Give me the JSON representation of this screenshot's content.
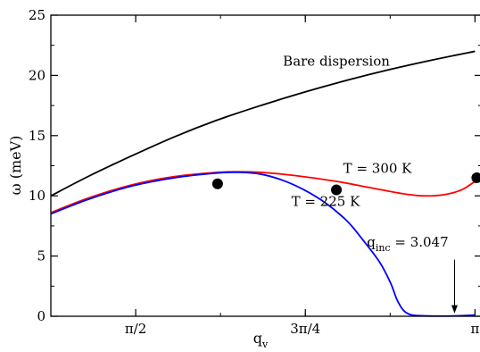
{
  "chart_data": {
    "type": "line",
    "xlabel": "q",
    "xlabel_sub": "v",
    "ylabel": "ω (meV)",
    "xlim": [
      1.1781,
      3.1731
    ],
    "ylim": [
      0,
      25
    ],
    "grid": false,
    "x_ticks": [
      {
        "value": 1.5708,
        "label": "π/2"
      },
      {
        "value": 2.3562,
        "label": "3π/4"
      },
      {
        "value": 3.1416,
        "label": "π"
      }
    ],
    "y_ticks": [
      {
        "value": 0,
        "label": "0"
      },
      {
        "value": 5,
        "label": "5"
      },
      {
        "value": 10,
        "label": "10"
      },
      {
        "value": 15,
        "label": "15"
      },
      {
        "value": 20,
        "label": "20"
      },
      {
        "value": 25,
        "label": "25"
      }
    ],
    "series": [
      {
        "name": "Bare dispersion",
        "color": "#000000",
        "x": [
          1.1781,
          1.35,
          1.55,
          1.75,
          1.95,
          2.15,
          2.35,
          2.55,
          2.75,
          2.95,
          3.1416
        ],
        "y": [
          10.0,
          11.6,
          13.3,
          14.9,
          16.3,
          17.5,
          18.6,
          19.6,
          20.5,
          21.3,
          22.0
        ]
      },
      {
        "name": "T = 300 K",
        "color": "#ff0000",
        "x": [
          1.1781,
          1.35,
          1.55,
          1.75,
          1.95,
          2.05,
          2.15,
          2.3,
          2.5,
          2.65,
          2.8,
          2.9,
          3.0,
          3.08,
          3.1416
        ],
        "y": [
          8.6,
          9.8,
          10.9,
          11.6,
          11.95,
          12.0,
          11.95,
          11.7,
          11.2,
          10.7,
          10.2,
          10.0,
          10.1,
          10.5,
          11.2
        ]
      },
      {
        "name": "T = 225 K",
        "color": "#0000ff",
        "x": [
          1.1781,
          1.35,
          1.55,
          1.75,
          1.95,
          2.05,
          2.15,
          2.25,
          2.35,
          2.45,
          2.55,
          2.62,
          2.7,
          2.75,
          2.78,
          2.81,
          2.84,
          2.88,
          2.95,
          3.047,
          3.1416
        ],
        "y": [
          8.5,
          9.7,
          10.8,
          11.5,
          11.9,
          11.95,
          11.8,
          11.3,
          10.5,
          9.4,
          7.9,
          6.4,
          4.5,
          2.8,
          1.4,
          0.5,
          0.15,
          0.05,
          0.02,
          0.03,
          0.1
        ]
      }
    ],
    "points": [
      {
        "x": 1.95,
        "y": 11.0
      },
      {
        "x": 2.5,
        "y": 10.5
      },
      {
        "x": 3.15,
        "y": 11.5
      }
    ],
    "annotations": [
      {
        "text": "Bare dispersion",
        "x": 2.5,
        "y": 20.8
      },
      {
        "text": "T = 300 K",
        "x": 2.69,
        "y": 11.9
      },
      {
        "text": "T = 225 K",
        "x": 2.45,
        "y": 9.15
      },
      {
        "text": "q",
        "sub": "inc",
        "suffix": " = 3.047",
        "x": 2.83,
        "y": 5.8
      }
    ],
    "arrow": {
      "x": 3.047,
      "y_from": 4.7,
      "y_to": 0.25
    }
  }
}
